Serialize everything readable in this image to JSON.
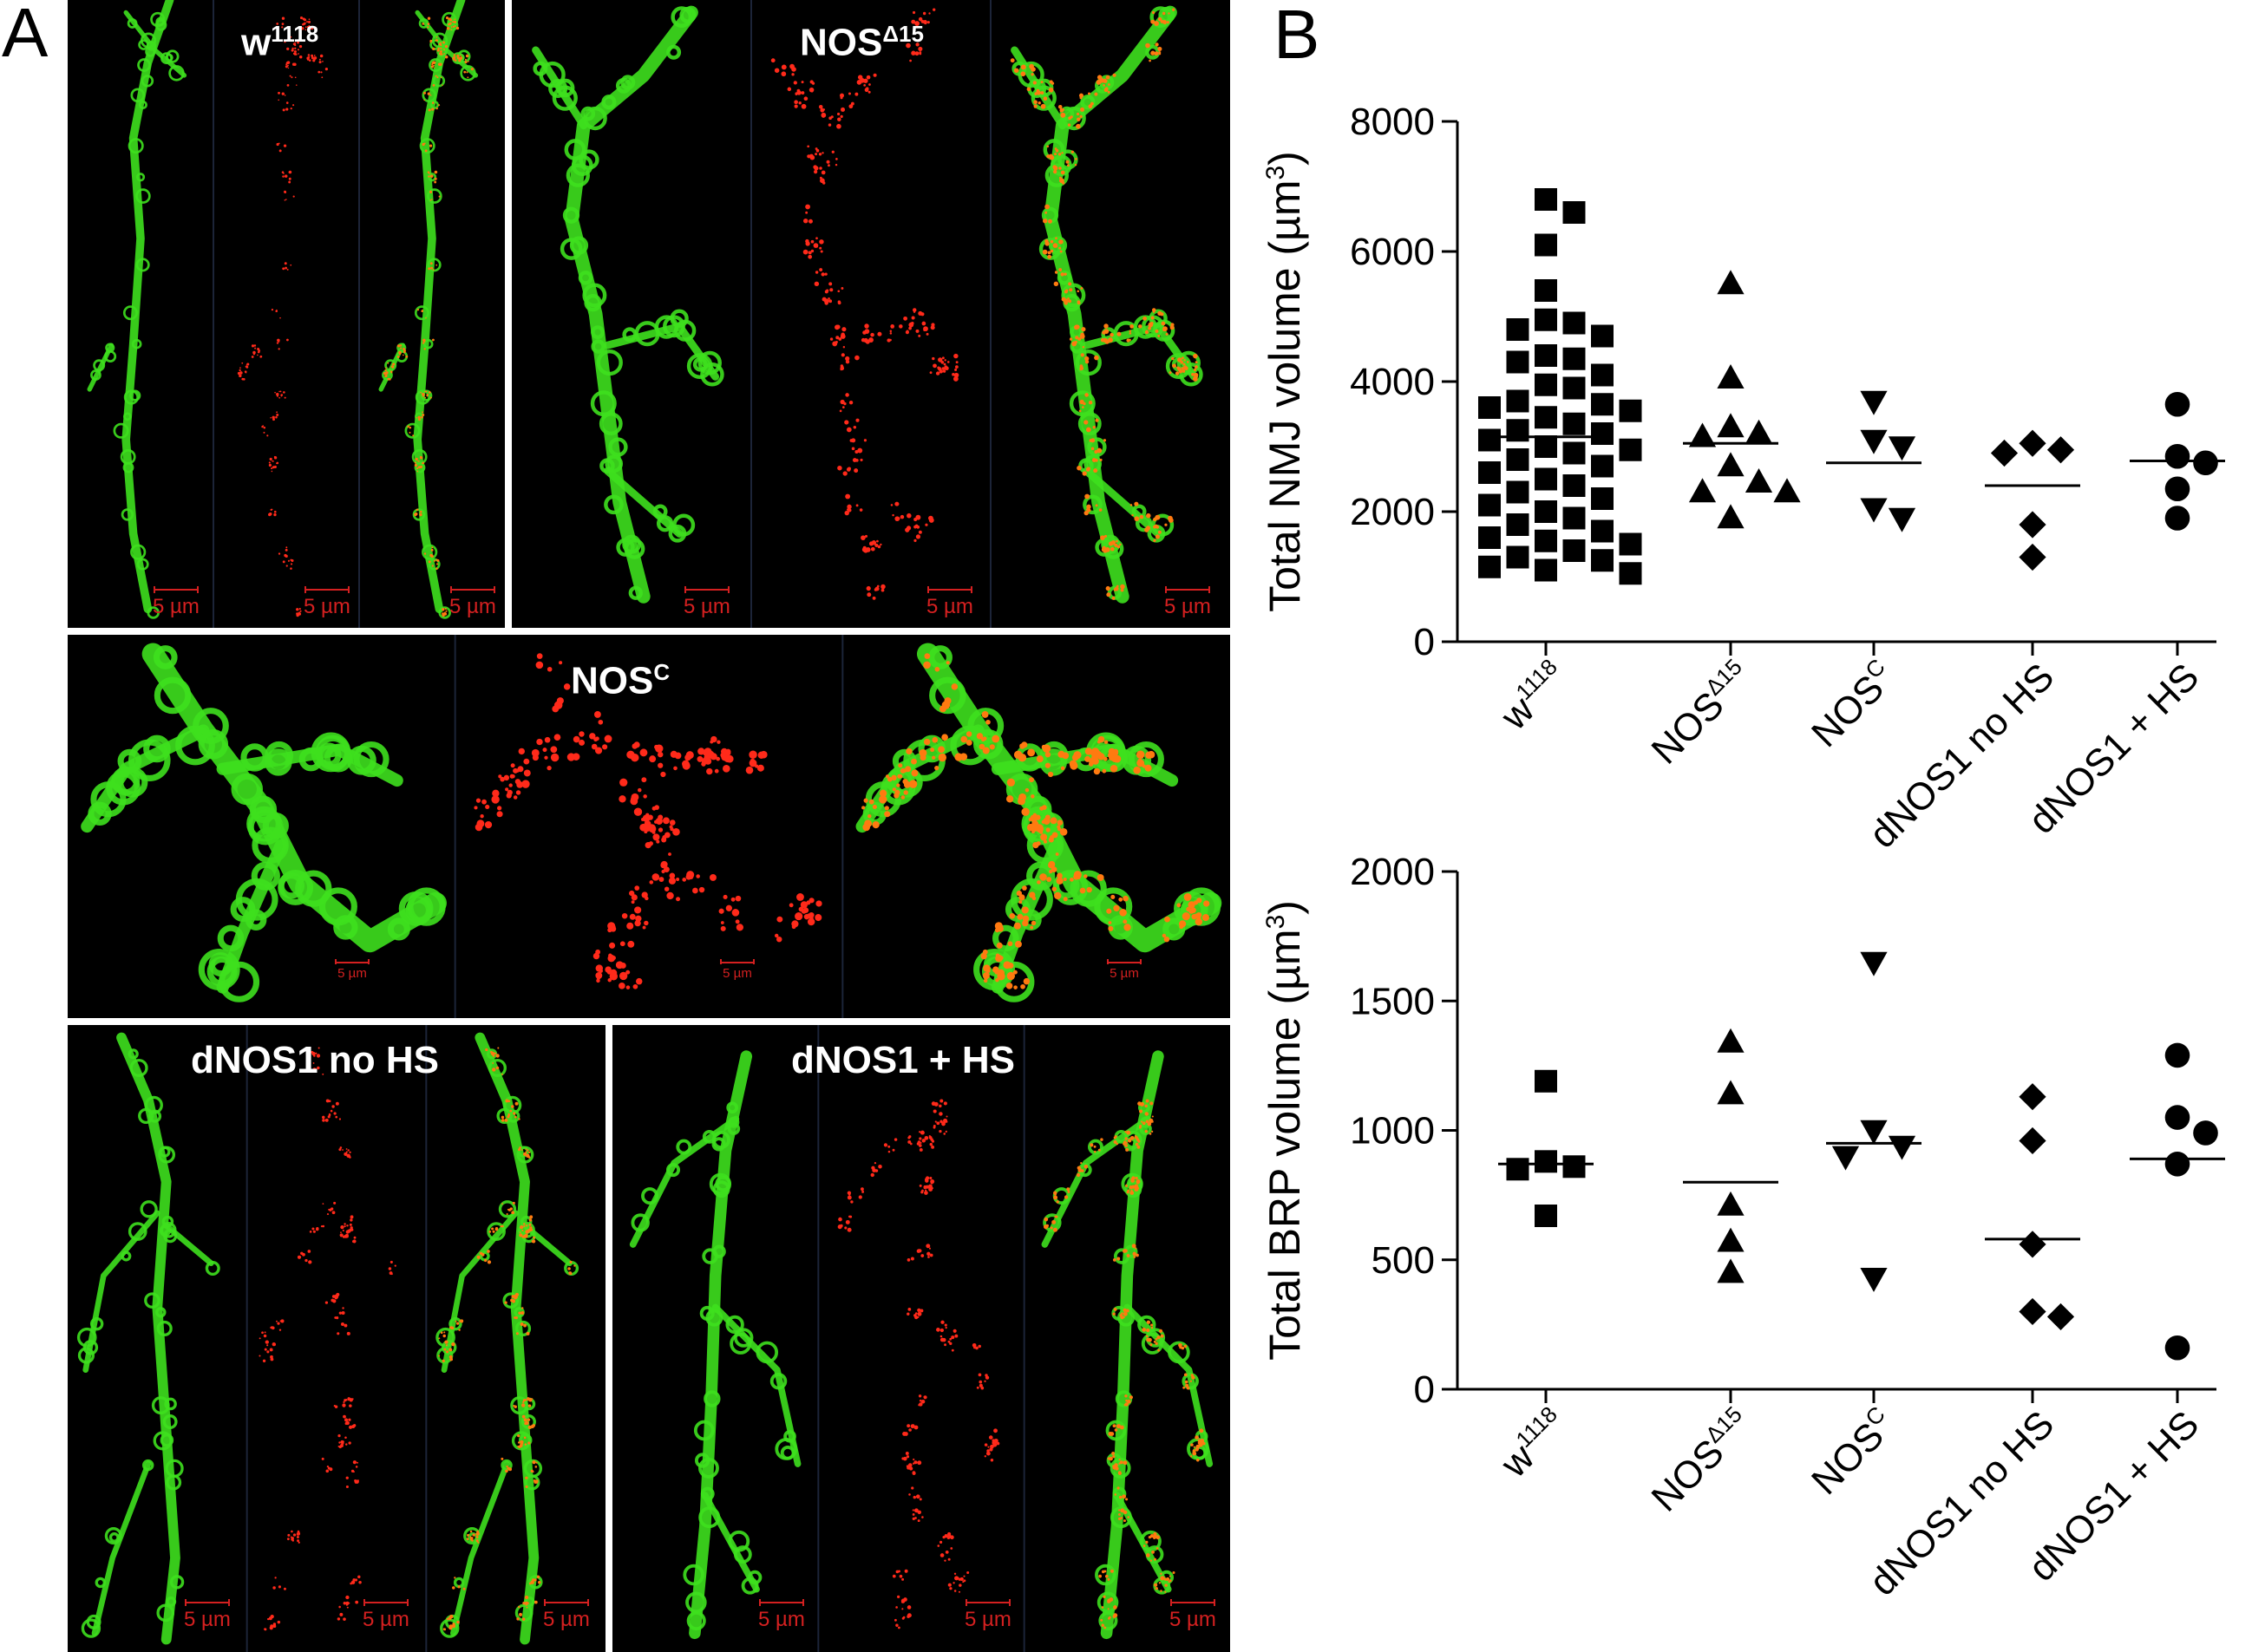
{
  "panel_labels": {
    "a": "A",
    "b": "B"
  },
  "micrographs": [
    {
      "id": "w1118",
      "label": "w",
      "label_sup": "1118",
      "scale_text": "5 µm"
    },
    {
      "id": "nos-d15",
      "label": "NOS",
      "label_sup": "Δ15",
      "scale_text": "5 µm"
    },
    {
      "id": "nos-c",
      "label": "NOS",
      "label_sup": "C",
      "scale_text": "5 µm"
    },
    {
      "id": "dnos1-no-hs",
      "label": "dNOS1 no HS",
      "label_sup": "",
      "scale_text": "5 µm"
    },
    {
      "id": "dnos1-hs",
      "label": "dNOS1 + HS",
      "label_sup": "",
      "scale_text": "5 µm"
    }
  ],
  "colors": {
    "hrp_green": "#3ee01e",
    "brp_red": "#ff2a1a",
    "background": "#000000",
    "scale_red": "#d42020"
  },
  "chart_data": [
    {
      "type": "scatter",
      "title": "",
      "xlabel": "",
      "ylabel": "Total NMJ volume (µm³)",
      "ylabel_main": "Total NMJ volume (µm",
      "ylabel_sup": "3",
      "ylabel_end": ")",
      "ylim": [
        0,
        8000
      ],
      "yticks": [
        0,
        2000,
        4000,
        6000,
        8000
      ],
      "ytick_labels": [
        "0",
        "2000",
        "4000",
        "6000",
        "8000"
      ],
      "grid": false,
      "categories": [
        {
          "main": "w",
          "sup": "1118"
        },
        {
          "main": "NOS",
          "sup": "Δ15"
        },
        {
          "main": "NOS",
          "sup": "C"
        },
        {
          "main": "dNOS1 no HS",
          "sup": ""
        },
        {
          "main": "dNOS1 + HS",
          "sup": ""
        }
      ],
      "groups": [
        {
          "marker": "square",
          "mean": 3150,
          "values": [
            6800,
            6600,
            6100,
            5400,
            4950,
            4900,
            4800,
            4700,
            4400,
            4350,
            4300,
            4100,
            3950,
            3900,
            3700,
            3650,
            3600,
            3550,
            3450,
            3350,
            3250,
            3200,
            3100,
            3000,
            2950,
            2900,
            2800,
            2700,
            2600,
            2500,
            2400,
            2300,
            2200,
            2100,
            2000,
            1900,
            1800,
            1700,
            1600,
            1550,
            1500,
            1400,
            1300,
            1250,
            1150,
            1100,
            1050
          ]
        },
        {
          "marker": "triangle-up",
          "mean": 3050,
          "values": [
            5500,
            4050,
            3300,
            3200,
            3150,
            2700,
            2450,
            2300,
            2300,
            1900
          ]
        },
        {
          "marker": "triangle-down",
          "mean": 2750,
          "values": [
            3700,
            3100,
            3000,
            2050,
            1900
          ]
        },
        {
          "marker": "diamond",
          "mean": 2400,
          "values": [
            3050,
            2950,
            2900,
            1800,
            1300
          ]
        },
        {
          "marker": "circle",
          "mean": 2780,
          "values": [
            3650,
            2850,
            2750,
            2350,
            1900
          ]
        }
      ]
    },
    {
      "type": "scatter",
      "title": "",
      "xlabel": "",
      "ylabel": "Total BRP volume (µm³)",
      "ylabel_main": "Total BRP volume (µm",
      "ylabel_sup": "3",
      "ylabel_end": ")",
      "ylim": [
        0,
        2000
      ],
      "yticks": [
        0,
        500,
        1000,
        1500,
        2000
      ],
      "ytick_labels": [
        "0",
        "500",
        "1000",
        "1500",
        "2000"
      ],
      "grid": false,
      "categories": [
        {
          "main": "w",
          "sup": "1118"
        },
        {
          "main": "NOS",
          "sup": "Δ15"
        },
        {
          "main": "NOS",
          "sup": "C"
        },
        {
          "main": "dNOS1 no HS",
          "sup": ""
        },
        {
          "main": "dNOS1 + HS",
          "sup": ""
        }
      ],
      "groups": [
        {
          "marker": "square",
          "mean": 870,
          "values": [
            1190,
            880,
            860,
            850,
            670
          ]
        },
        {
          "marker": "triangle-up",
          "mean": 800,
          "values": [
            1340,
            1140,
            710,
            570,
            450
          ]
        },
        {
          "marker": "triangle-down",
          "mean": 950,
          "values": [
            1650,
            1000,
            940,
            900,
            430
          ]
        },
        {
          "marker": "diamond",
          "mean": 580,
          "values": [
            1130,
            960,
            560,
            300,
            280
          ]
        },
        {
          "marker": "circle",
          "mean": 890,
          "values": [
            1290,
            1050,
            990,
            870,
            160
          ]
        }
      ]
    }
  ]
}
